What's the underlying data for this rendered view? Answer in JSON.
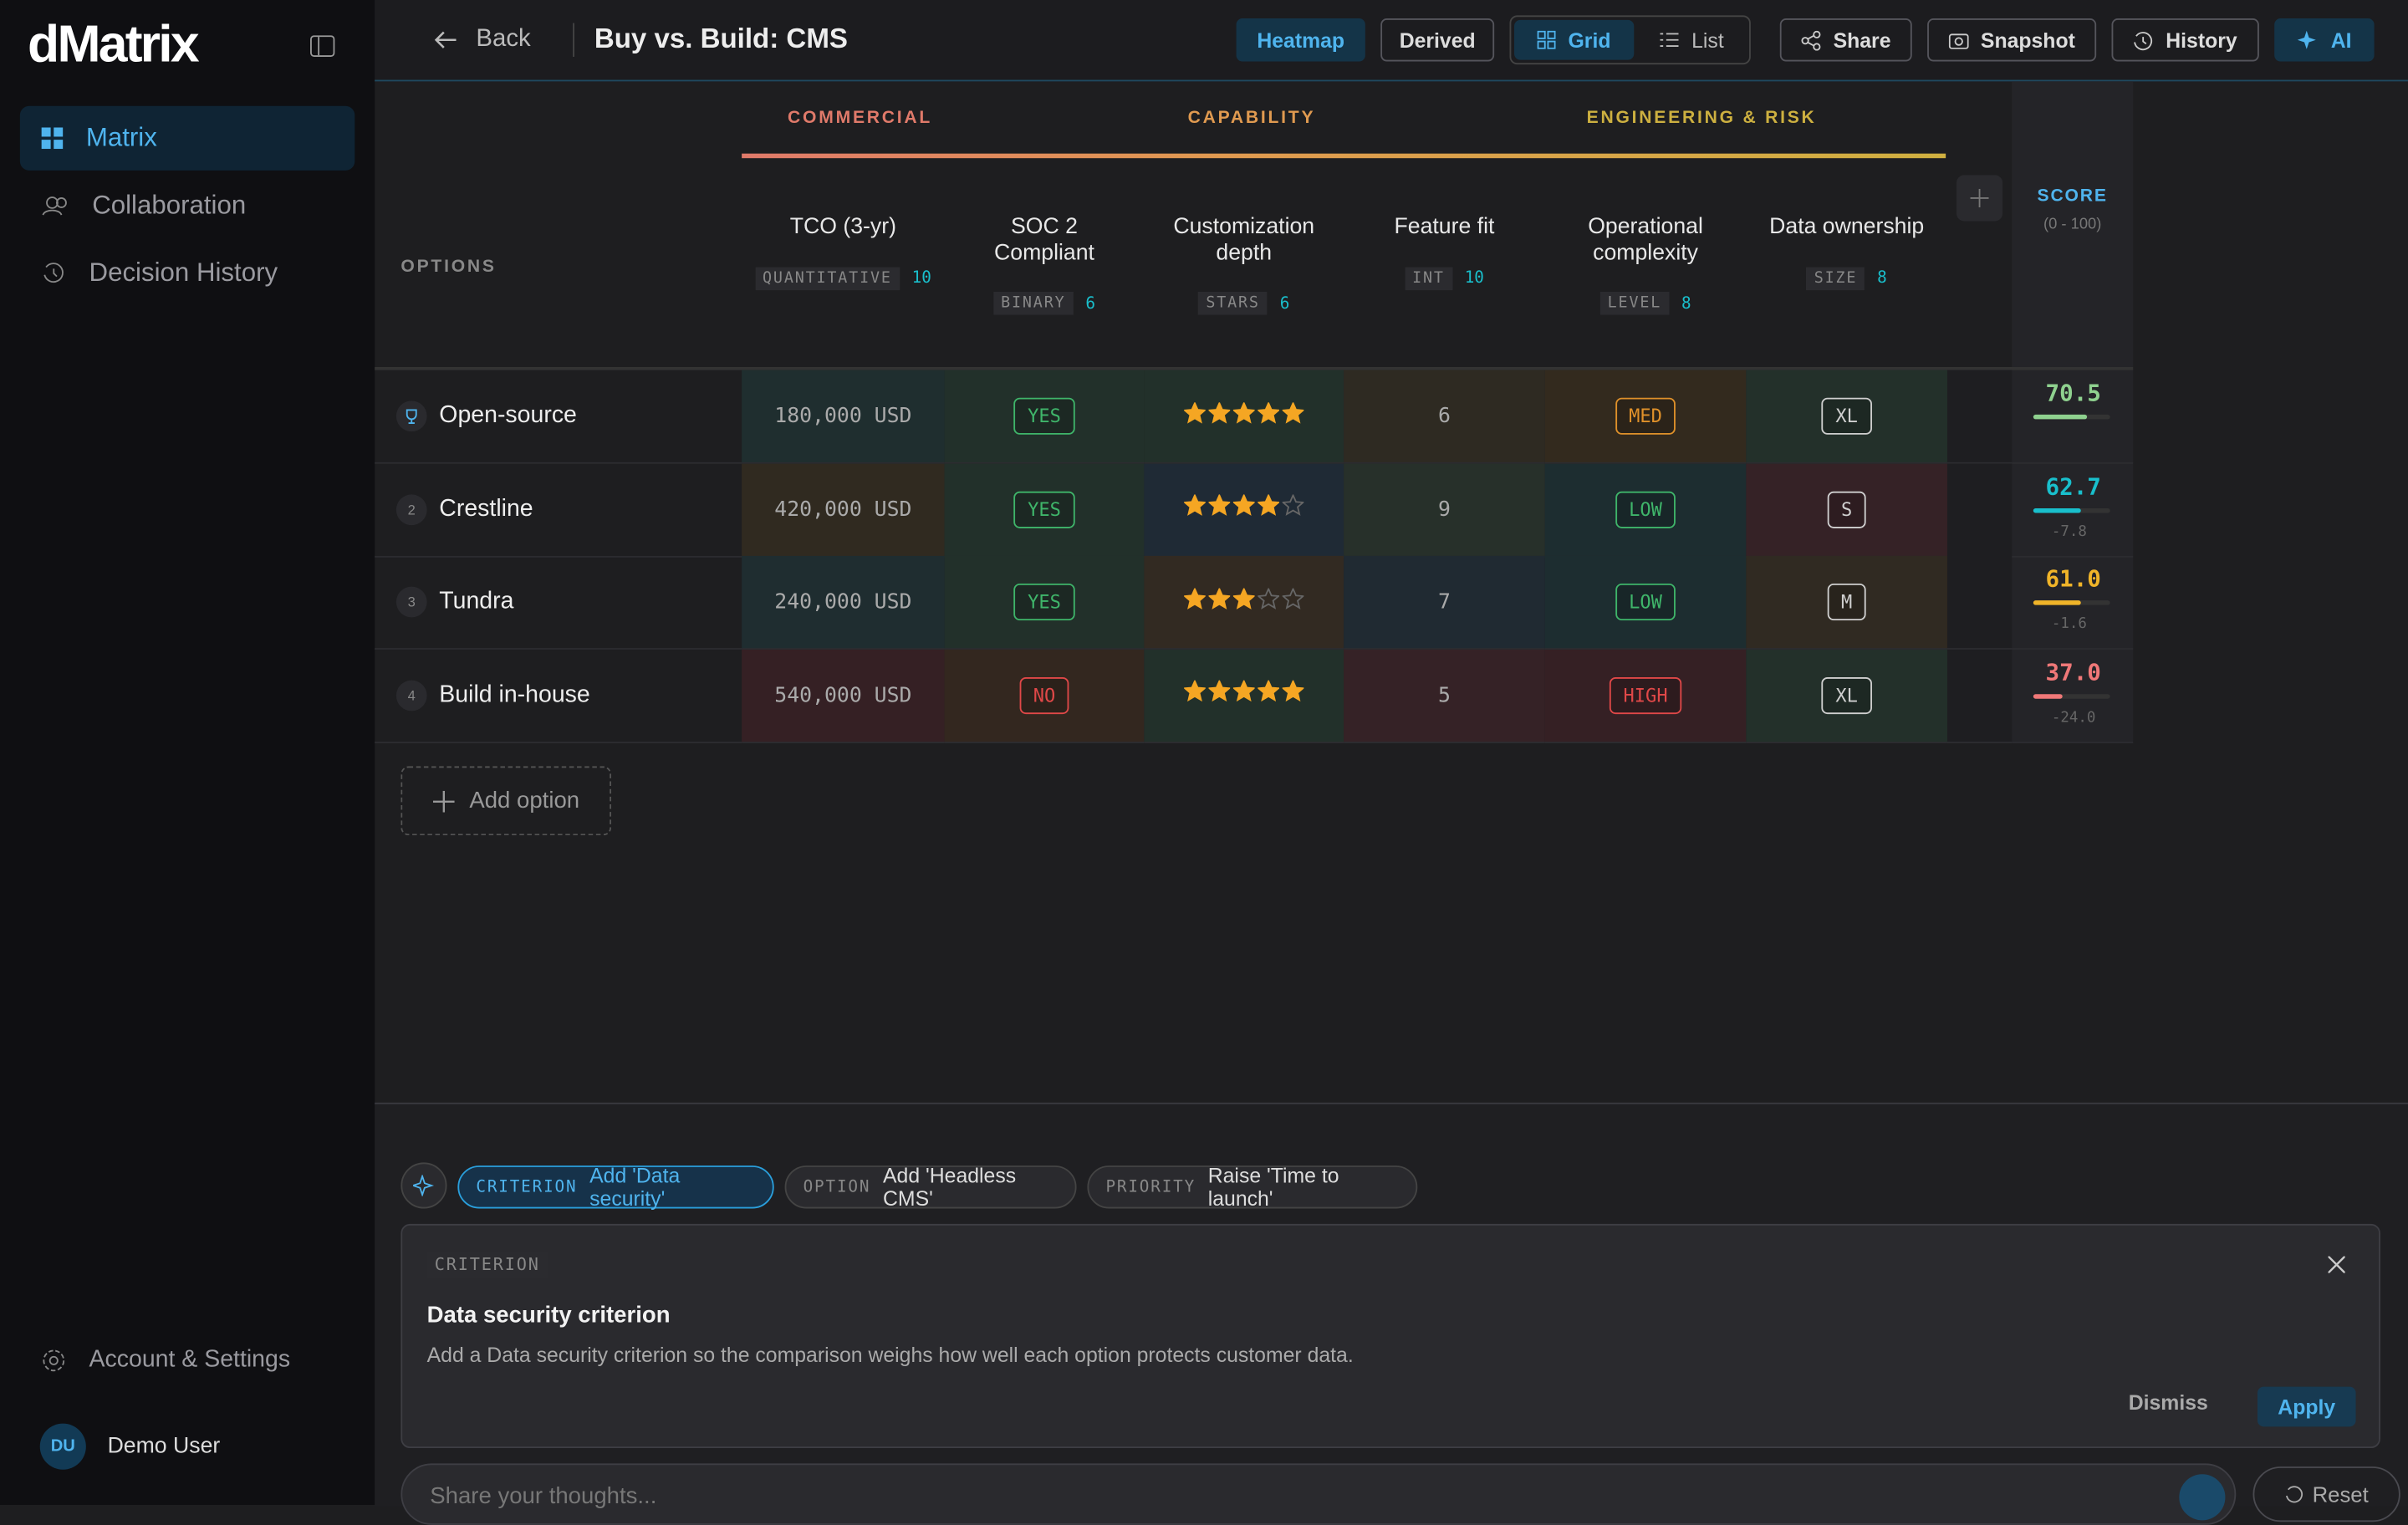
{
  "sidebar": {
    "logo": "dMatrix",
    "nav": [
      "Matrix",
      "Collaboration",
      "Decision History"
    ],
    "settings": "Account & Settings",
    "user": {
      "initials": "DU",
      "name": "Demo User"
    }
  },
  "toolbar": {
    "back": "Back",
    "title": "Buy vs. Build: CMS",
    "buttons": [
      "Heatmap",
      "Derived",
      "Grid",
      "List",
      "Share",
      "Snapshot",
      "History",
      "AI"
    ]
  },
  "matrix": {
    "groups": [
      "COMMERCIAL",
      "CAPABILITY",
      "ENGINEERING & RISK"
    ],
    "options_label": "OPTIONS",
    "score_label": "SCORE",
    "score_range": "(0 - 100)",
    "criteria": [
      {
        "name": "TCO (3-yr)",
        "type": "QUANTITATIVE",
        "weight": "10"
      },
      {
        "name": "SOC 2 Compliant",
        "type": "BINARY",
        "weight": "6"
      },
      {
        "name": "Customization depth",
        "type": "STARS",
        "weight": "6"
      },
      {
        "name": "Feature fit",
        "type": "INT",
        "weight": "10"
      },
      {
        "name": "Operational complexity",
        "type": "LEVEL",
        "weight": "8"
      },
      {
        "name": "Data ownership",
        "type": "SIZE",
        "weight": "8"
      }
    ],
    "rows": [
      {
        "name": "Open-source",
        "score": "70.5",
        "color": "#8fd18f",
        "cells": [
          {
            "value": "180,000 USD",
            "bg": "#1f2e2f"
          },
          {
            "value": "YES",
            "bg": "#22302a",
            "badge": "#3fb56a"
          },
          {
            "value": 5,
            "bg": "#22302a"
          },
          {
            "value": "6",
            "bg": "#2e2a22"
          },
          {
            "value": "MED",
            "bg": "#332a1e",
            "badge": "#e0912a"
          },
          {
            "value": "XL",
            "bg": "#23302a",
            "badge": "#d0d0d0"
          }
        ]
      },
      {
        "rank": "2",
        "name": "Crestline",
        "score": "62.7",
        "delta": "-7.8",
        "color": "#19bfcc",
        "cells": [
          {
            "value": "420,000 USD",
            "bg": "#302a20"
          },
          {
            "value": "YES",
            "bg": "#22302a",
            "badge": "#3fb56a"
          },
          {
            "value": 4,
            "bg": "#1f2a35"
          },
          {
            "value": "9",
            "bg": "#27302a"
          },
          {
            "value": "LOW",
            "bg": "#1d2d30",
            "badge": "#3fb56a"
          },
          {
            "value": "S",
            "bg": "#352226",
            "badge": "#d0d0d0"
          }
        ]
      },
      {
        "rank": "3",
        "name": "Tundra",
        "score": "61.0",
        "delta": "-1.6",
        "color": "#f0b429",
        "cells": [
          {
            "value": "240,000 USD",
            "bg": "#1f2d30"
          },
          {
            "value": "YES",
            "bg": "#22302a",
            "badge": "#3fb56a"
          },
          {
            "value": 3,
            "bg": "#322a22"
          },
          {
            "value": "7",
            "bg": "#202a32"
          },
          {
            "value": "LOW",
            "bg": "#1d2d30",
            "badge": "#3fb56a"
          },
          {
            "value": "M",
            "bg": "#302a22",
            "badge": "#d0d0d0"
          }
        ]
      },
      {
        "rank": "4",
        "name": "Build in-house",
        "score": "37.0",
        "delta": "-24.0",
        "color": "#f07878",
        "cells": [
          {
            "value": "540,000 USD",
            "bg": "#352024"
          },
          {
            "value": "NO",
            "bg": "#33271f",
            "badge": "#e04848"
          },
          {
            "value": 5,
            "bg": "#22302a"
          },
          {
            "value": "5",
            "bg": "#352226"
          },
          {
            "value": "HIGH",
            "bg": "#352024",
            "badge": "#e04848"
          },
          {
            "value": "XL",
            "bg": "#23302a",
            "badge": "#d0d0d0"
          }
        ]
      }
    ],
    "add_option": "Add option"
  },
  "ai": {
    "chips": [
      {
        "tag": "CRITERION",
        "text": "Add 'Data security'"
      },
      {
        "tag": "OPTION",
        "text": "Add 'Headless CMS'"
      },
      {
        "tag": "PRIORITY",
        "text": "Raise 'Time to launch'"
      }
    ],
    "card": {
      "tag": "CRITERION",
      "title": "Data security criterion",
      "body": "Add a Data security criterion so the comparison weighs how well each option protects customer data.",
      "dismiss": "Dismiss",
      "apply": "Apply"
    },
    "input_placeholder": "Share your thoughts...",
    "reset": "Reset"
  }
}
